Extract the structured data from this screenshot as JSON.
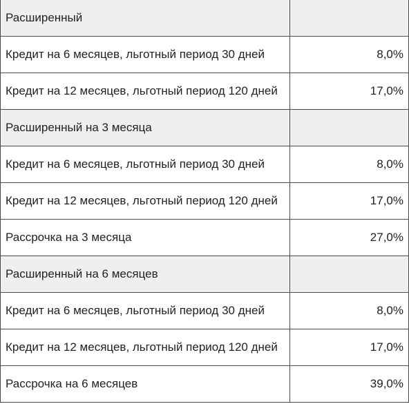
{
  "table": {
    "rows": [
      {
        "type": "group",
        "label": "Расширенный",
        "value": ""
      },
      {
        "type": "item",
        "label": "Кредит на 6 месяцев, льготный период 30 дней",
        "value": "8,0%"
      },
      {
        "type": "item",
        "label": "Кредит на 12 месяцев, льготный период 120 дней",
        "value": "17,0%"
      },
      {
        "type": "group",
        "label": "Расширенный на 3 месяца",
        "value": ""
      },
      {
        "type": "item",
        "label": "Кредит на 6 месяцев, льготный период 30 дней",
        "value": "8,0%"
      },
      {
        "type": "item",
        "label": "Кредит на 12 месяцев, льготный период 120 дней",
        "value": "17,0%"
      },
      {
        "type": "item",
        "label": "Рассрочка на 3 месяца",
        "value": "27,0%"
      },
      {
        "type": "group",
        "label": "Расширенный на 6 месяцев",
        "value": ""
      },
      {
        "type": "item",
        "label": "Кредит на 6 месяцев, льготный период 30 дней",
        "value": "8,0%"
      },
      {
        "type": "item",
        "label": "Кредит на 12 месяцев, льготный период 120 дней",
        "value": "17,0%"
      },
      {
        "type": "item",
        "label": "Рассрочка на 6 месяцев",
        "value": "39,0%"
      }
    ]
  }
}
